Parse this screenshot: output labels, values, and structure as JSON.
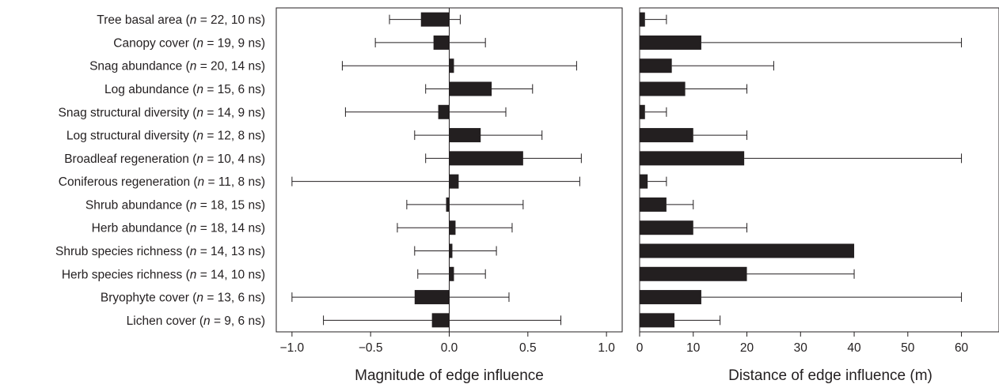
{
  "chart_data": [
    {
      "type": "bar",
      "orientation": "horizontal",
      "xlabel": "Magnitude of edge influence",
      "xlim": [
        -1.1,
        1.1
      ],
      "xticks": [
        -1.0,
        -0.5,
        0.0,
        0.5,
        1.0
      ],
      "xtick_labels": [
        "−1.0",
        "−0.5",
        "0.0",
        "0.5",
        "1.0"
      ],
      "zero_line": true,
      "categories": [
        {
          "name": "Tree basal area",
          "n": "22",
          "ns": "10"
        },
        {
          "name": "Canopy cover",
          "n": "19",
          "ns": "9"
        },
        {
          "name": "Snag abundance",
          "n": "20",
          "ns": "14"
        },
        {
          "name": "Log abundance",
          "n": "15",
          "ns": "6"
        },
        {
          "name": "Snag structural diversity",
          "n": "14",
          "ns": "9"
        },
        {
          "name": "Log structural diversity",
          "n": "12",
          "ns": "8"
        },
        {
          "name": "Broadleaf regeneration",
          "n": "10",
          "ns": "4"
        },
        {
          "name": "Coniferous regeneration",
          "n": "11",
          "ns": "8"
        },
        {
          "name": "Shrub abundance",
          "n": "18",
          "ns": "15"
        },
        {
          "name": "Herb abundance",
          "n": "18",
          "ns": "14"
        },
        {
          "name": "Shrub species richness",
          "n": "14",
          "ns": "13"
        },
        {
          "name": "Herb species richness",
          "n": "14",
          "ns": "10"
        },
        {
          "name": "Bryophyte cover",
          "n": "13",
          "ns": "6"
        },
        {
          "name": "Lichen cover",
          "n": "9",
          "ns": "6"
        }
      ],
      "values": [
        -0.18,
        -0.1,
        0.03,
        0.27,
        -0.07,
        0.2,
        0.47,
        0.06,
        -0.02,
        0.04,
        0.02,
        0.03,
        -0.22,
        -0.11
      ],
      "err_low": [
        -0.38,
        -0.47,
        -0.68,
        -0.15,
        -0.66,
        -0.22,
        -0.15,
        -1.0,
        -0.27,
        -0.33,
        -0.22,
        -0.2,
        -1.0,
        -0.8
      ],
      "err_high": [
        0.07,
        0.23,
        0.81,
        0.53,
        0.36,
        0.59,
        0.84,
        0.83,
        0.47,
        0.4,
        0.3,
        0.23,
        0.38,
        0.71
      ],
      "bar_color": "#231f20"
    },
    {
      "type": "bar",
      "orientation": "horizontal",
      "xlabel": "Distance of edge influence (m)",
      "xlim": [
        0,
        67
      ],
      "xticks": [
        0,
        10,
        20,
        30,
        40,
        50,
        60
      ],
      "xtick_labels": [
        "0",
        "10",
        "20",
        "30",
        "40",
        "50",
        "60"
      ],
      "values": [
        1,
        11.5,
        6,
        8.5,
        1,
        10,
        19.5,
        1.5,
        5,
        10,
        40,
        20,
        11.5,
        6.5
      ],
      "err_high": [
        5,
        60,
        25,
        20,
        5,
        20,
        60,
        5,
        10,
        20,
        null,
        40,
        60,
        15
      ],
      "bar_color": "#231f20"
    }
  ]
}
